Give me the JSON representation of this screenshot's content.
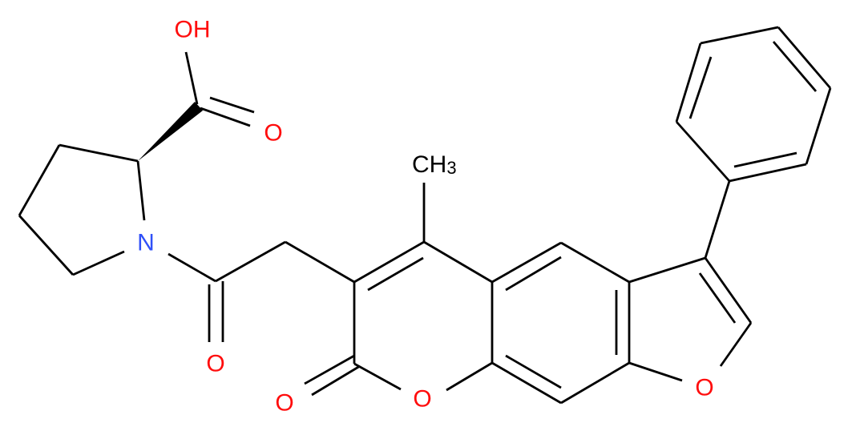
{
  "diagram": {
    "type": "chemical-structure",
    "colors": {
      "bond": "#000000",
      "oxygen": "#ff0d0d",
      "nitrogen": "#3050f8",
      "carbon": "#000000"
    },
    "atoms": {
      "carboxyl_oh": "OH",
      "carboxyl_o": "O",
      "proline_n": "N",
      "amide_o": "O",
      "methyl_c": "CH",
      "methyl_sub": "3",
      "lactone_carbonyl_o": "O",
      "pyran_o": "O",
      "furan_o": "O"
    }
  }
}
